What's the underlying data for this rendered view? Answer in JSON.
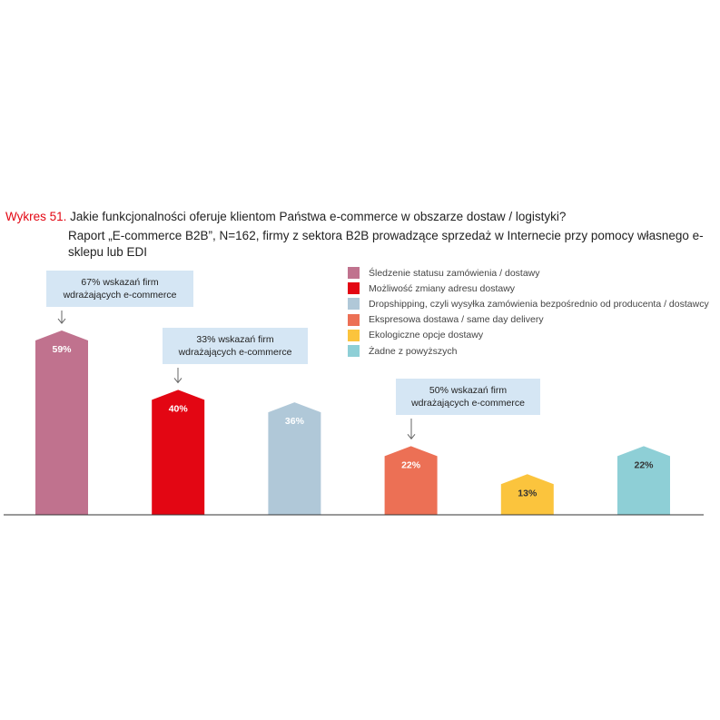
{
  "title": {
    "label": "Wykres 51.",
    "question": " Jakie funkcjonalności oferuje klientom Państwa e-commerce w obszarze dostaw / logistyki?",
    "subtitle": "Raport „E-commerce B2B”, N=162, firmy z sektora B2B prowadzące sprzedaż w Internecie przy pomocy własnego e-sklepu lub EDI"
  },
  "chart_data": {
    "type": "bar",
    "categories": [
      "Śledzenie statusu zamówienia / dostawy",
      "Możliwość zmiany adresu dostawy",
      "Dropshipping, czyli wysyłka zamówienia bezpośrednio od producenta / dostawcy",
      "Ekspresowa dostawa / same day delivery",
      "Ekologiczne opcje dostawy",
      "Żadne z powyższych"
    ],
    "values": [
      59,
      40,
      36,
      22,
      13,
      22
    ],
    "value_labels": [
      "59%",
      "40%",
      "36%",
      "22%",
      "13%",
      "22%"
    ],
    "colors": [
      "#c0728e",
      "#e30613",
      "#b0c8d8",
      "#ec7055",
      "#fbc43d",
      "#8ecfd6"
    ],
    "label_colors": [
      "#ffffff",
      "#ffffff",
      "#ffffff",
      "#ffffff",
      "#333333",
      "#333333"
    ],
    "ylim": [
      0,
      60
    ],
    "legend_position": "top-right",
    "annotations": [
      {
        "bar_index": 0,
        "text_line1": "67% wskazań firm",
        "text_line2": "wdrażających e-commerce"
      },
      {
        "bar_index": 1,
        "text_line1": "33% wskazań firm",
        "text_line2": "wdrażających e-commerce"
      },
      {
        "bar_index": 3,
        "text_line1": "50% wskazań firm",
        "text_line2": "wdrażających e-commerce"
      }
    ]
  }
}
